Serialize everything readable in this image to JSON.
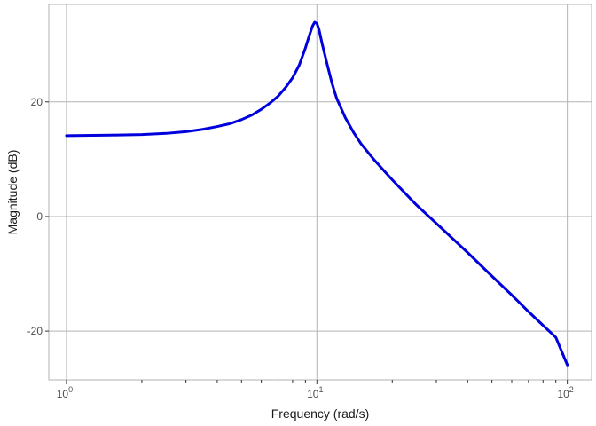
{
  "chart_data": {
    "type": "line",
    "title": "",
    "xlabel": "Frequency (rad/s)",
    "ylabel": "Magnitude (dB)",
    "x_scale": "log10",
    "xlim": [
      0.85,
      125
    ],
    "ylim": [
      -28.5,
      37
    ],
    "x_major_ticks": [
      1,
      10,
      100
    ],
    "x_tick_labels": [
      {
        "base": "10",
        "exp": "0"
      },
      {
        "base": "10",
        "exp": "1"
      },
      {
        "base": "10",
        "exp": "2"
      }
    ],
    "x_minor_ticks": [
      2,
      3,
      4,
      5,
      6,
      7,
      8,
      9,
      20,
      30,
      40,
      50,
      60,
      70,
      80,
      90
    ],
    "y_ticks": [
      20,
      0,
      -20
    ],
    "y_tick_labels": [
      "20",
      "0",
      "-20"
    ],
    "grid": true,
    "line_color": "#0000dd",
    "series": [
      {
        "x": [
          1,
          1.5,
          2,
          2.5,
          3,
          3.5,
          4,
          4.5,
          5,
          5.5,
          6,
          6.5,
          7,
          7.5,
          8,
          8.5,
          9,
          9.3,
          9.6,
          9.8,
          10,
          10.2,
          10.5,
          11,
          11.5,
          12,
          13,
          14,
          15,
          17,
          20,
          25,
          30,
          40,
          50,
          60,
          70,
          80,
          90,
          100
        ],
        "y": [
          14.1,
          14.2,
          14.3,
          14.5,
          14.8,
          15.2,
          15.7,
          16.2,
          16.9,
          17.7,
          18.7,
          19.8,
          21.0,
          22.5,
          24.2,
          26.4,
          29.4,
          31.4,
          33.2,
          33.9,
          33.7,
          32.6,
          30.1,
          26.5,
          23.2,
          20.6,
          17.2,
          14.7,
          12.7,
          9.8,
          6.4,
          2.0,
          -1.2,
          -6.3,
          -10.4,
          -13.7,
          -16.6,
          -19.0,
          -21.1,
          -25.9
        ]
      }
    ]
  }
}
